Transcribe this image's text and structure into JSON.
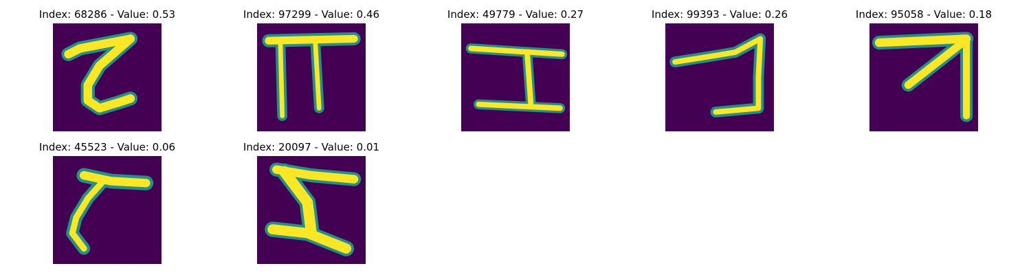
{
  "colors": {
    "background": "#440154",
    "stroke_core": "#fde725",
    "stroke_edge": "#21918c",
    "stroke_mid": "#5ec962"
  },
  "panels": [
    {
      "title": "Index: 68286 - Value: 0.53",
      "glyph": "hook-z"
    },
    {
      "title": "Index: 97299 - Value: 0.46",
      "glyph": "pi"
    },
    {
      "title": "Index: 49779 - Value: 0.27",
      "glyph": "i-beam"
    },
    {
      "title": "Index: 99393 - Value: 0.26",
      "glyph": "bracket"
    },
    {
      "title": "Index: 95058 - Value: 0.18",
      "glyph": "arrow-corner"
    },
    {
      "title": "Index: 45523 - Value: 0.06",
      "glyph": "gamma-curve"
    },
    {
      "title": "Index: 20097 - Value: 0.01",
      "glyph": "z-stroke"
    }
  ]
}
